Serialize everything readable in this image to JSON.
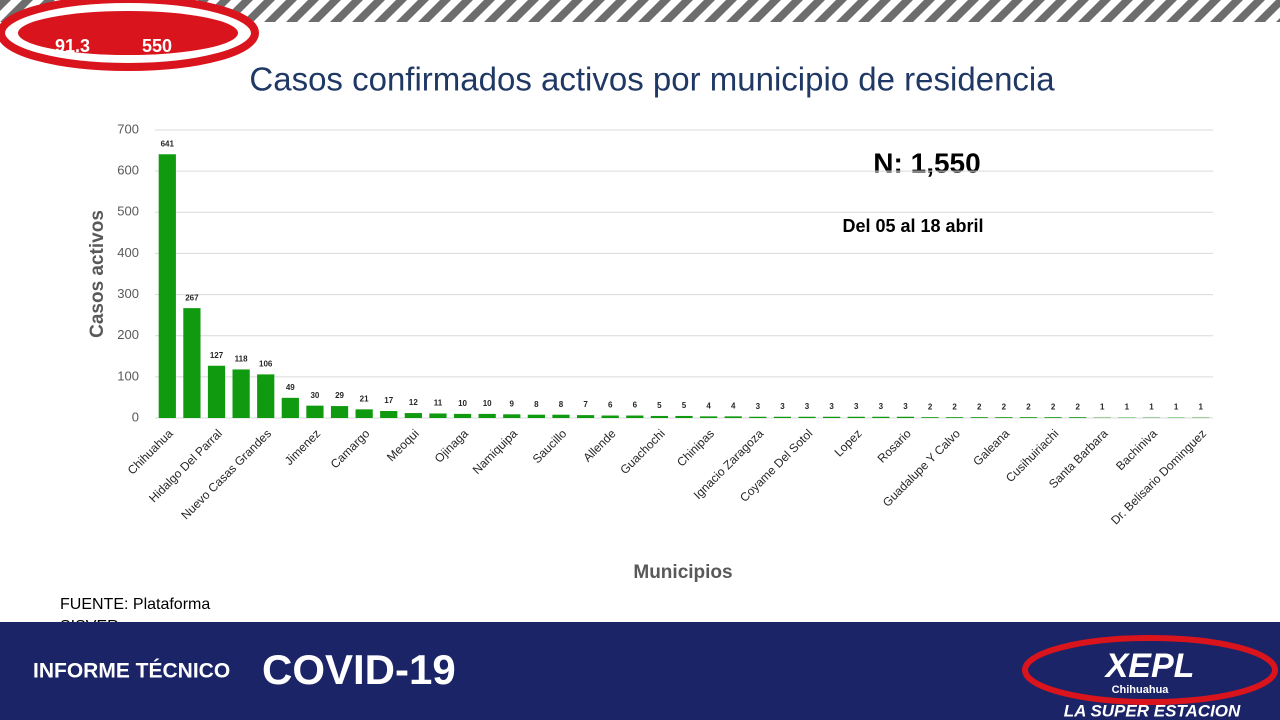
{
  "chart_data": {
    "type": "bar",
    "title": "Casos confirmados activos por municipio de residencia",
    "x_label": "Municipios",
    "y_label": "Casos activos",
    "annotations": [
      "N: 1,550",
      "Del 05 al 18 abril"
    ],
    "source": "FUENTE: Plataforma SISVER",
    "categories": [
      "Chihuahua",
      null,
      "Hidalgo Del Parral",
      null,
      "Nuevo Casas Grandes",
      null,
      "Jimenez",
      null,
      "Camargo",
      null,
      "Meoqui",
      null,
      "Ojinaga",
      null,
      "Namiquipa",
      null,
      "Saucillo",
      null,
      "Allende",
      null,
      "Guachochi",
      null,
      "Chinipas",
      null,
      "Ignacio Zaragoza",
      null,
      "Coyame Del Sotol",
      null,
      "Lopez",
      null,
      "Rosario",
      null,
      "Guadalupe Y Calvo",
      null,
      "Galeana",
      null,
      "Cusihuiriachi",
      null,
      "Santa Barbara",
      null,
      "Bachiniva",
      null,
      "Dr. Belisario Dominguez"
    ],
    "values": [
      641,
      267,
      127,
      118,
      106,
      49,
      30,
      29,
      21,
      17,
      12,
      11,
      10,
      10,
      9,
      8,
      8,
      7,
      6,
      6,
      5,
      5,
      4,
      4,
      3,
      3,
      3,
      3,
      3,
      3,
      3,
      2,
      2,
      2,
      2,
      2,
      2,
      2,
      1,
      1,
      1,
      1,
      1
    ],
    "color": "#0f9a0f",
    "ylim": [
      0,
      700
    ],
    "yticks": [
      0,
      100,
      200,
      300,
      400,
      500,
      600,
      700
    ],
    "grid": true
  },
  "header": {
    "logo_left": "91.3",
    "logo_right": "550"
  },
  "footer": {
    "label": "INFORME TÉCNICO",
    "headline": "COVID-19",
    "station": "XEPL",
    "state": "Chihuahua",
    "slogan": "LA SUPER ESTACION"
  }
}
